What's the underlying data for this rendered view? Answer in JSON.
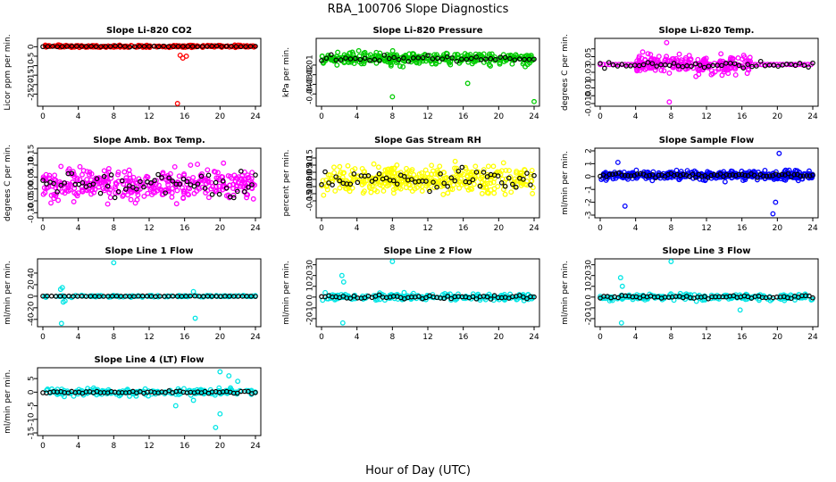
{
  "figure": {
    "title": "RBA_100706  Slope Diagnostics",
    "xlabel": "Hour of Day (UTC)"
  },
  "chart_data": [
    {
      "type": "scatter",
      "title": "Slope Li-820 CO2",
      "ylabel": "Licor ppm per min.",
      "color": "#ff0000",
      "xlim": [
        0,
        24
      ],
      "ylim": [
        -30,
        3
      ],
      "xticks": [
        0,
        4,
        8,
        12,
        16,
        20,
        24
      ],
      "yticks": [
        0,
        -5,
        -10,
        -15,
        -20,
        -25
      ],
      "ytick_labels": [
        "0",
        "-5",
        "-10",
        "-15",
        "-20",
        "-25"
      ],
      "profile": {
        "spread": 0.6,
        "base": 0.2,
        "xmin": 0,
        "xmax": 24,
        "n": 260,
        "seed": 11
      },
      "outliers": [
        [
          15.5,
          -4.5
        ],
        [
          16.2,
          -5
        ],
        [
          15.8,
          -6
        ],
        [
          15.2,
          -30
        ]
      ],
      "black": {
        "n": 45,
        "spread": 0.25,
        "seed": 21
      }
    },
    {
      "type": "scatter",
      "title": "Slope Li-820 Pressure",
      "ylabel": "kPa per min.",
      "color": "#00cc00",
      "xlim": [
        0,
        24
      ],
      "ylim": [
        -0.05,
        0.015
      ],
      "xticks": [
        0,
        4,
        8,
        12,
        16,
        20,
        24
      ],
      "yticks": [
        -0.01,
        -0.02,
        -0.03,
        -0.04
      ],
      "ytick_labels": [
        "-0.01",
        "-0.02",
        "-0.03",
        "-0.04"
      ],
      "profile": {
        "spread": 0.006,
        "base": -0.003,
        "xmin": 0,
        "xmax": 24,
        "n": 320,
        "seed": 12
      },
      "outliers": [
        [
          0.2,
          -0.008
        ],
        [
          1.5,
          -0.005
        ],
        [
          16.5,
          -0.029
        ],
        [
          8,
          -0.043
        ],
        [
          24,
          -0.048
        ]
      ],
      "black": {
        "n": 45,
        "spread": 0.003,
        "seed": 22
      }
    },
    {
      "type": "scatter",
      "title": "Slope Li-820 Temp.",
      "ylabel": "degrees C per min.",
      "color": "#ff00ff",
      "xlim": [
        0,
        24
      ],
      "ylim": [
        -0.01,
        0.07
      ],
      "xticks": [
        0,
        4,
        8,
        12,
        16,
        20,
        24
      ],
      "yticks": [
        0.05,
        0.03,
        0.01,
        -0.01
      ],
      "ytick_labels": [
        "0.05",
        "0.03",
        "0.01",
        "-0.010"
      ],
      "extra_ticks": [
        [
          0.06,
          "0.06"
        ],
        [
          0.04,
          "0.04"
        ],
        [
          0.02,
          "0.02"
        ],
        [
          0.0,
          "0.00"
        ]
      ],
      "profile": {
        "spread": 0.012,
        "base": 0.04,
        "xmin": 4,
        "xmax": 17,
        "n": 220,
        "seed": 13
      },
      "outliers": [
        [
          7.5,
          0.068
        ],
        [
          7.8,
          -0.008
        ]
      ],
      "flat": 0.04,
      "black": {
        "n": 50,
        "spread": 0.004,
        "seed": 23
      }
    },
    {
      "type": "scatter",
      "title": "Slope Amb. Box Temp.",
      "ylabel": "degrees C per min.",
      "color": "#ff00ff",
      "xlim": [
        0,
        24
      ],
      "ylim": [
        -0.11,
        0.16
      ],
      "xticks": [
        0,
        4,
        8,
        12,
        16,
        20,
        24
      ],
      "yticks": [
        0.15,
        0.1,
        0.05,
        0.0,
        -0.05,
        -0.1
      ],
      "ytick_labels": [
        "0.15",
        "0.10",
        "0.05",
        "0.00",
        "-0.05",
        "-0.10"
      ],
      "profile": {
        "spread": 0.06,
        "base": 0.02,
        "xmin": 0,
        "xmax": 24,
        "n": 360,
        "seed": 14
      },
      "outliers": [],
      "black": {
        "n": 60,
        "spread": 0.05,
        "seed": 24
      }
    },
    {
      "type": "scatter",
      "title": "Slope Gas Stream RH",
      "ylabel": "percent per min.",
      "color": "#ffff00",
      "xlim": [
        0,
        24
      ],
      "ylim": [
        -0.25,
        0.2
      ],
      "xticks": [
        0,
        4,
        8,
        12,
        16,
        20,
        24
      ],
      "yticks": [
        0.15,
        0.1,
        0.05,
        0.0,
        -0.05,
        -0.1,
        -0.15
      ],
      "ytick_labels": [
        "0.15",
        "0.10",
        "0.05",
        "0.00",
        "-0.05",
        "-0.10",
        "-0.15"
      ],
      "profile": {
        "spread": 0.09,
        "base": 0.0,
        "xmin": 0,
        "xmax": 24,
        "n": 380,
        "seed": 15
      },
      "outliers": [],
      "black": {
        "n": 60,
        "spread": 0.08,
        "seed": 25
      }
    },
    {
      "type": "scatter",
      "title": "Slope Sample Flow",
      "ylabel": "ml/min per min.",
      "color": "#0000ff",
      "xlim": [
        0,
        24
      ],
      "ylim": [
        -3,
        2
      ],
      "xticks": [
        0,
        4,
        8,
        12,
        16,
        20,
        24
      ],
      "yticks": [
        2,
        1,
        0,
        -1,
        -2,
        -3
      ],
      "ytick_labels": [
        "2",
        "1",
        "0",
        "-1",
        "-2",
        "-3"
      ],
      "profile": {
        "spread": 0.35,
        "base": 0.1,
        "xmin": 0,
        "xmax": 24,
        "n": 380,
        "seed": 16
      },
      "outliers": [
        [
          2,
          1.1
        ],
        [
          2.8,
          -2.3
        ],
        [
          19.5,
          -2.9
        ],
        [
          20.2,
          1.8
        ],
        [
          19.8,
          -2.0
        ]
      ],
      "black": {
        "n": 70,
        "spread": 0.15,
        "seed": 26
      }
    },
    {
      "type": "scatter",
      "title": "Slope Line 1 Flow",
      "ylabel": "ml/min per min.",
      "color": "#00e5e5",
      "xlim": [
        0,
        24
      ],
      "ylim": [
        -48,
        60
      ],
      "xticks": [
        0,
        4,
        8,
        12,
        16,
        20,
        24
      ],
      "yticks": [
        40,
        20,
        0,
        -20,
        -40
      ],
      "ytick_labels": [
        "40",
        "20",
        "0",
        "-20",
        "-40"
      ],
      "profile": {
        "spread": 1.5,
        "base": 0,
        "xmin": 0,
        "xmax": 24,
        "n": 120,
        "seed": 17
      },
      "outliers": [
        [
          2,
          12
        ],
        [
          2.2,
          15
        ],
        [
          2.5,
          -8
        ],
        [
          2.3,
          -10
        ],
        [
          8,
          58
        ],
        [
          17,
          8
        ],
        [
          17.2,
          -38
        ],
        [
          2.1,
          -47
        ]
      ],
      "black": {
        "n": 50,
        "spread": 0.5,
        "seed": 27
      }
    },
    {
      "type": "scatter",
      "title": "Slope Line 2 Flow",
      "ylabel": "ml/min per min.",
      "color": "#00e5e5",
      "xlim": [
        0,
        24
      ],
      "ylim": [
        -25,
        33
      ],
      "xticks": [
        0,
        4,
        8,
        12,
        16,
        20,
        24
      ],
      "yticks": [
        30,
        20,
        10,
        0,
        -10,
        -20
      ],
      "ytick_labels": [
        "30",
        "20",
        "10",
        "0",
        "-10",
        "-20"
      ],
      "profile": {
        "spread": 3,
        "base": 0,
        "xmin": 0,
        "xmax": 24,
        "n": 200,
        "seed": 18
      },
      "outliers": [
        [
          2.3,
          20
        ],
        [
          2.5,
          14
        ],
        [
          8,
          33
        ],
        [
          2.4,
          -24
        ]
      ],
      "black": {
        "n": 60,
        "spread": 1.5,
        "seed": 28
      }
    },
    {
      "type": "scatter",
      "title": "Slope Line 3 Flow",
      "ylabel": "ml/min per min.",
      "color": "#00e5e5",
      "xlim": [
        0,
        24
      ],
      "ylim": [
        -25,
        33
      ],
      "xticks": [
        0,
        4,
        8,
        12,
        16,
        20,
        24
      ],
      "yticks": [
        30,
        20,
        10,
        0,
        -10,
        -20
      ],
      "ytick_labels": [
        "30",
        "20",
        "10",
        "0",
        "-10",
        "-20"
      ],
      "profile": {
        "spread": 3,
        "base": 0,
        "xmin": 0,
        "xmax": 24,
        "n": 200,
        "seed": 19
      },
      "outliers": [
        [
          2.3,
          18
        ],
        [
          2.5,
          10
        ],
        [
          8,
          33
        ],
        [
          2.4,
          -24
        ],
        [
          15.8,
          -12
        ]
      ],
      "black": {
        "n": 60,
        "spread": 1.5,
        "seed": 29
      }
    },
    {
      "type": "scatter",
      "title": "Slope Line 4 (LT) Flow",
      "ylabel": "ml/min per min.",
      "color": "#00e5e5",
      "xlim": [
        0,
        24
      ],
      "ylim": [
        -15,
        8
      ],
      "xticks": [
        0,
        4,
        8,
        12,
        16,
        20,
        24
      ],
      "yticks": [
        5,
        0,
        -5,
        -10,
        -15
      ],
      "ytick_labels": [
        "5",
        "0",
        "-5",
        "-10",
        "-15"
      ],
      "profile": {
        "spread": 1.2,
        "base": 0,
        "xmin": 0,
        "xmax": 24,
        "n": 200,
        "seed": 20
      },
      "outliers": [
        [
          20,
          7.5
        ],
        [
          19.5,
          -13
        ],
        [
          20,
          -8
        ],
        [
          15,
          -5
        ],
        [
          17,
          -3
        ],
        [
          21,
          6
        ],
        [
          22,
          4
        ]
      ],
      "black": {
        "n": 60,
        "spread": 0.4,
        "seed": 30
      }
    }
  ]
}
